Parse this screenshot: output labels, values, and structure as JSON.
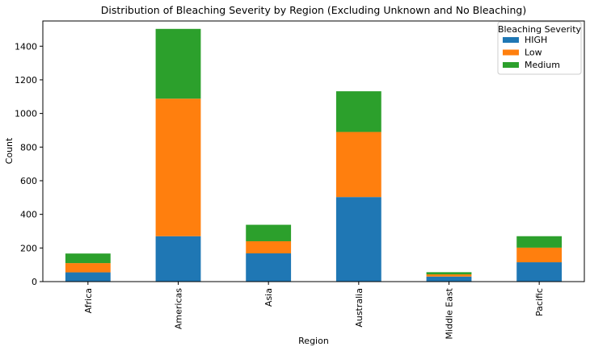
{
  "chart_data": {
    "type": "bar",
    "stacked": true,
    "title": "Distribution of Bleaching Severity by Region (Excluding Unknown and No Bleaching)",
    "xlabel": "Region",
    "ylabel": "Count",
    "ylim": [
      0,
      1550
    ],
    "yticks": [
      0,
      200,
      400,
      600,
      800,
      1000,
      1200,
      1400
    ],
    "grid": false,
    "categories": [
      "Africa",
      "Americas",
      "Asia",
      "Australia",
      "Middle East",
      "Pacific"
    ],
    "series": [
      {
        "name": "HIGH",
        "color": "#1f77b4",
        "values": [
          55,
          270,
          168,
          503,
          30,
          115
        ]
      },
      {
        "name": "Low",
        "color": "#ff7f0e",
        "values": [
          55,
          818,
          72,
          387,
          13,
          87
        ]
      },
      {
        "name": "Medium",
        "color": "#2ca02c",
        "values": [
          57,
          415,
          98,
          242,
          13,
          68
        ]
      }
    ],
    "legend": {
      "title": "Bleaching Severity",
      "position": "top-right"
    }
  }
}
